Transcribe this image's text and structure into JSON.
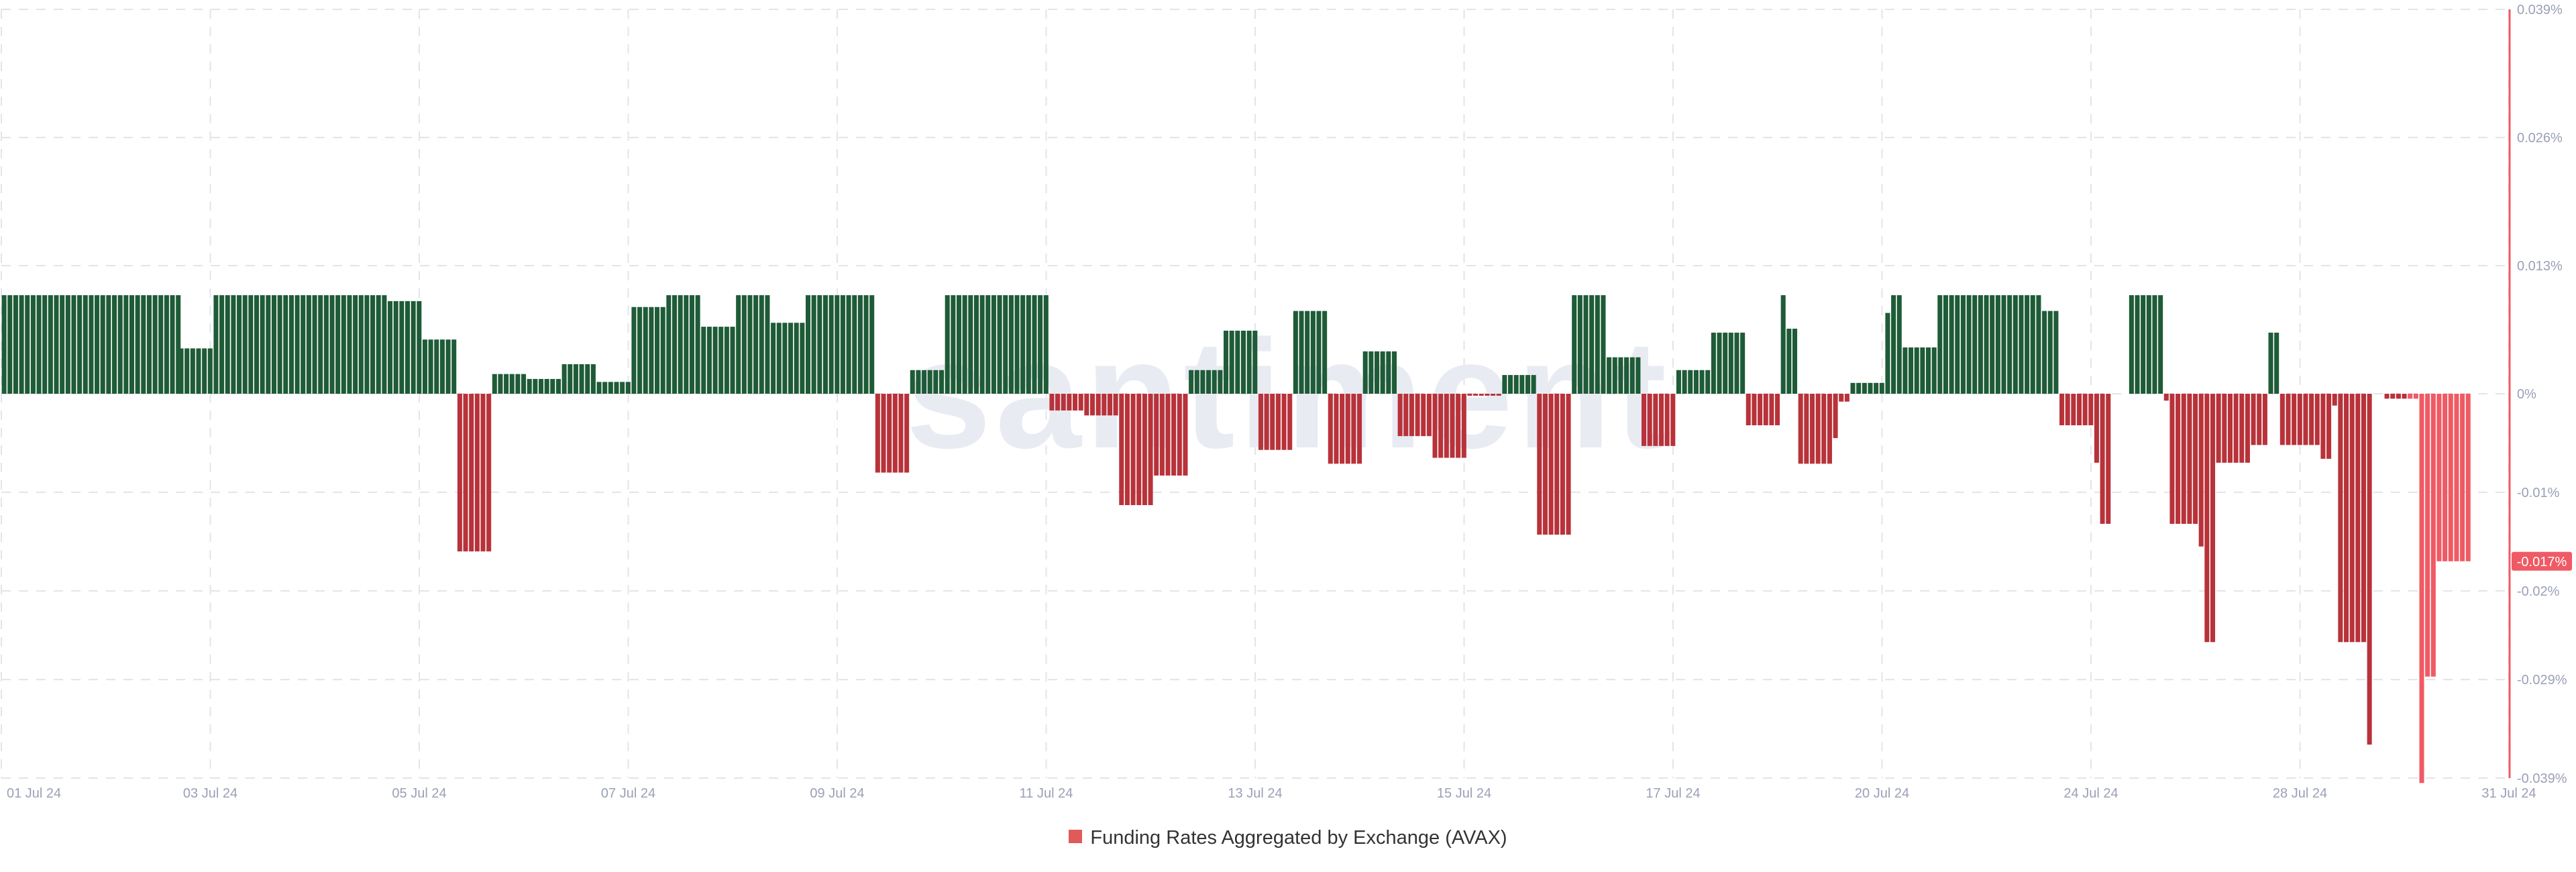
{
  "chart_data": {
    "type": "bar",
    "title": "",
    "xlabel": "",
    "ylabel": "",
    "watermark": "santiment",
    "ylim": [
      -0.039,
      0.039
    ],
    "y_ticks": [
      "0.039%",
      "0.026%",
      "0.013%",
      "0%",
      "-0.01%",
      "-0.02%",
      "-0.029%",
      "-0.039%"
    ],
    "y_tick_values": [
      0.039,
      0.026,
      0.013,
      0,
      -0.01,
      -0.02,
      -0.029,
      -0.039
    ],
    "x_ticks": [
      "01 Jul 24",
      "03 Jul 24",
      "05 Jul 24",
      "07 Jul 24",
      "09 Jul 24",
      "11 Jul 24",
      "13 Jul 24",
      "15 Jul 24",
      "17 Jul 24",
      "20 Jul 24",
      "24 Jul 24",
      "28 Jul 24",
      "31 Jul 24"
    ],
    "x_tick_hours": [
      0,
      72,
      144,
      216,
      288,
      360,
      432,
      504,
      576,
      648,
      720,
      792,
      864
    ],
    "x_range_hours": [
      0,
      864
    ],
    "grid": true,
    "legend_position": "bottom",
    "current_value_label": "-0.017%",
    "current_value": -0.017,
    "colors": {
      "positive": "#1e5b37",
      "negative": "#b8323a",
      "negative_recent": "#ef5a64",
      "grid": "#e3e4ea",
      "cursor_line": "#ef5a64",
      "label_bg": "#ef5a64"
    },
    "series": [
      {
        "name": "Funding Rates Aggregated by Exchange (AVAX)",
        "interval_hours": 2,
        "segments": [
          {
            "from": 0,
            "to": 61,
            "value": 0.01
          },
          {
            "from": 61,
            "to": 73,
            "value": 0.0046
          },
          {
            "from": 73,
            "to": 133,
            "value": 0.01
          },
          {
            "from": 133,
            "to": 145,
            "value": 0.0094
          },
          {
            "from": 145,
            "to": 157,
            "value": 0.0055
          },
          {
            "from": 157,
            "to": 169,
            "value": -0.016
          },
          {
            "from": 169,
            "to": 181,
            "value": 0.002
          },
          {
            "from": 181,
            "to": 193,
            "value": 0.0015
          },
          {
            "from": 193,
            "to": 205,
            "value": 0.003
          },
          {
            "from": 205,
            "to": 217,
            "value": 0.0012
          },
          {
            "from": 217,
            "to": 229,
            "value": 0.0088
          },
          {
            "from": 229,
            "to": 241,
            "value": 0.01
          },
          {
            "from": 241,
            "to": 253,
            "value": 0.0068
          },
          {
            "from": 253,
            "to": 265,
            "value": 0.01
          },
          {
            "from": 265,
            "to": 277,
            "value": 0.0072
          },
          {
            "from": 277,
            "to": 301,
            "value": 0.01
          },
          {
            "from": 301,
            "to": 313,
            "value": -0.008
          },
          {
            "from": 313,
            "to": 325,
            "value": 0.0024
          },
          {
            "from": 325,
            "to": 361,
            "value": 0.01
          },
          {
            "from": 361,
            "to": 373,
            "value": -0.0017
          },
          {
            "from": 373,
            "to": 385,
            "value": -0.0022
          },
          {
            "from": 385,
            "to": 397,
            "value": -0.0113
          },
          {
            "from": 397,
            "to": 409,
            "value": -0.0083
          },
          {
            "from": 409,
            "to": 421,
            "value": 0.0024
          },
          {
            "from": 421,
            "to": 433,
            "value": 0.0064
          },
          {
            "from": 433,
            "to": 445,
            "value": -0.0057
          },
          {
            "from": 445,
            "to": 457,
            "value": 0.0084
          },
          {
            "from": 457,
            "to": 469,
            "value": -0.0071
          },
          {
            "from": 469,
            "to": 481,
            "value": 0.0043
          },
          {
            "from": 481,
            "to": 493,
            "value": -0.0043
          },
          {
            "from": 493,
            "to": 505,
            "value": -0.0065
          },
          {
            "from": 505,
            "to": 517,
            "value": -0.0002
          },
          {
            "from": 517,
            "to": 529,
            "value": 0.0019
          },
          {
            "from": 529,
            "to": 541,
            "value": -0.0143
          },
          {
            "from": 541,
            "to": 553,
            "value": 0.01
          },
          {
            "from": 553,
            "to": 565,
            "value": 0.0037
          },
          {
            "from": 565,
            "to": 577,
            "value": -0.0053
          },
          {
            "from": 577,
            "to": 589,
            "value": 0.0024
          },
          {
            "from": 589,
            "to": 601,
            "value": 0.0062
          },
          {
            "from": 601,
            "to": 613,
            "value": -0.0032
          },
          {
            "from": 613,
            "to": 615,
            "value": 0.01
          },
          {
            "from": 615,
            "to": 619,
            "value": 0.0066
          },
          {
            "from": 619,
            "to": 631,
            "value": -0.0071
          },
          {
            "from": 631,
            "to": 633,
            "value": -0.0045
          },
          {
            "from": 633,
            "to": 637,
            "value": -0.0008
          },
          {
            "from": 637,
            "to": 649,
            "value": 0.0011
          },
          {
            "from": 649,
            "to": 651,
            "value": 0.0082
          },
          {
            "from": 651,
            "to": 655,
            "value": 0.01
          },
          {
            "from": 655,
            "to": 667,
            "value": 0.0047
          },
          {
            "from": 667,
            "to": 703,
            "value": 0.01
          },
          {
            "from": 703,
            "to": 709,
            "value": 0.0084
          },
          {
            "from": 709,
            "to": 721,
            "value": -0.0032
          },
          {
            "from": 721,
            "to": 723,
            "value": -0.007
          },
          {
            "from": 723,
            "to": 727,
            "value": -0.0132
          },
          {
            "from": 727,
            "to": 733,
            "value": 0
          },
          {
            "from": 733,
            "to": 745,
            "value": 0.01
          },
          {
            "from": 745,
            "to": 747,
            "value": -0.0007
          },
          {
            "from": 747,
            "to": 757,
            "value": -0.0132
          },
          {
            "from": 757,
            "to": 759,
            "value": -0.0155
          },
          {
            "from": 759,
            "to": 763,
            "value": -0.0252
          },
          {
            "from": 763,
            "to": 775,
            "value": -0.007
          },
          {
            "from": 775,
            "to": 781,
            "value": -0.0052
          },
          {
            "from": 781,
            "to": 785,
            "value": 0.0062
          },
          {
            "from": 785,
            "to": 797,
            "value": -0.0052
          },
          {
            "from": 797,
            "to": 799,
            "value": -0.0052
          },
          {
            "from": 799,
            "to": 803,
            "value": -0.0066
          },
          {
            "from": 803,
            "to": 805,
            "value": -0.0012
          },
          {
            "from": 805,
            "to": 815,
            "value": -0.0252
          },
          {
            "from": 815,
            "to": 817,
            "value": -0.0356
          },
          {
            "from": 817,
            "to": 821,
            "value": 0
          },
          {
            "from": 821,
            "to": 833,
            "value": -0.0005
          },
          {
            "from": 833,
            "to": 835,
            "value": -0.0395
          },
          {
            "from": 835,
            "to": 839,
            "value": -0.0287
          },
          {
            "from": 839,
            "to": 851,
            "value": -0.017
          }
        ]
      }
    ]
  },
  "legend": {
    "label": "Funding Rates Aggregated by Exchange (AVAX)",
    "color": "#e05a5a"
  }
}
